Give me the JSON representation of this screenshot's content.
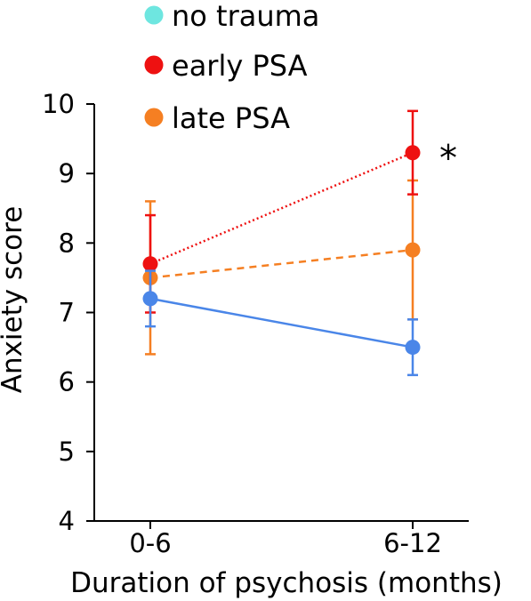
{
  "chart_data": {
    "type": "line",
    "title": "",
    "xlabel": "Duration of psychosis (months)",
    "ylabel": "Anxiety score",
    "categories": [
      "0-6",
      "6-12"
    ],
    "ylim": [
      4,
      10
    ],
    "yticks": [
      4,
      5,
      6,
      7,
      8,
      9,
      10
    ],
    "grid": false,
    "legend_position": "top",
    "series": [
      {
        "name": "no trauma",
        "legend_color": "#6ee6e0",
        "color": "#4a86e8",
        "line_style": "solid",
        "values": [
          7.2,
          6.5
        ],
        "error_low": [
          6.8,
          6.1
        ],
        "error_high": [
          7.6,
          6.9
        ]
      },
      {
        "name": "early PSA",
        "legend_color": "#ee1111",
        "color": "#ee1111",
        "line_style": "dotted",
        "values": [
          7.7,
          9.3
        ],
        "error_low": [
          7.0,
          8.7
        ],
        "error_high": [
          8.4,
          9.9
        ]
      },
      {
        "name": "late PSA",
        "legend_color": "#f57f22",
        "color": "#f57f22",
        "line_style": "dashed",
        "values": [
          7.5,
          7.9
        ],
        "error_low": [
          6.4,
          6.9
        ],
        "error_high": [
          8.6,
          8.9
        ]
      }
    ],
    "annotations": [
      {
        "text": "*",
        "series": "early PSA",
        "category": "6-12"
      }
    ]
  }
}
